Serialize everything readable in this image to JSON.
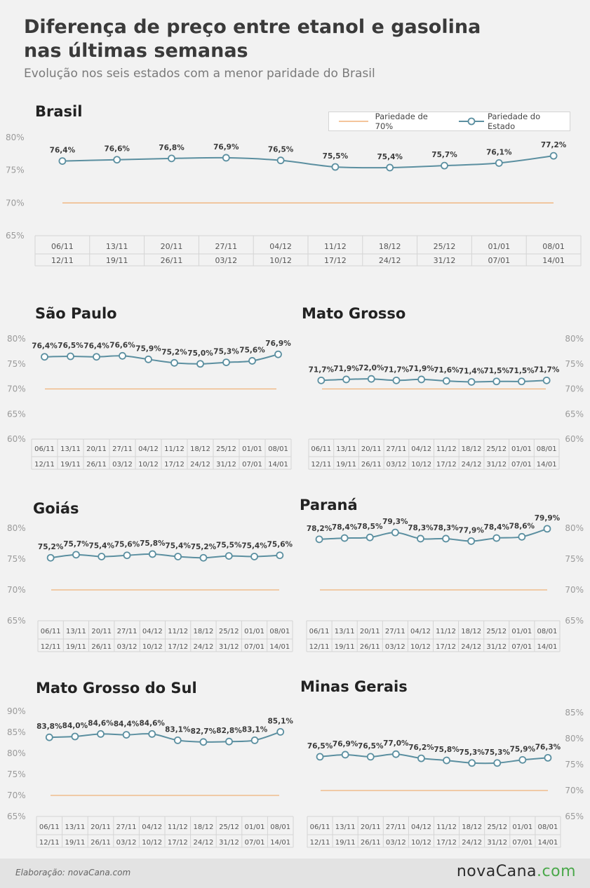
{
  "page": {
    "title_line1": "Diferença de preço entre etanol e gasolina",
    "title_line2": "nas últimas semanas",
    "subtitle": "Evolução nos seis estados com a menor paridade do Brasil",
    "credit": "Elaboração: novaCana.com",
    "logo_part1": "novaCana",
    "logo_part2": ".com"
  },
  "legend": {
    "ref_label": "Pariedade de 70%",
    "series_label": "Pariedade do Estado"
  },
  "colors": {
    "line": "#5b8fa0",
    "reference": "#f0b27a",
    "grid": "#d4d4d4",
    "axis_text": "#9a9a9a"
  },
  "chart_data": [
    {
      "type": "line",
      "title": "Brasil",
      "categories": [
        [
          "06/11",
          "12/11"
        ],
        [
          "13/11",
          "19/11"
        ],
        [
          "20/11",
          "26/11"
        ],
        [
          "27/11",
          "03/12"
        ],
        [
          "04/12",
          "10/12"
        ],
        [
          "11/12",
          "17/12"
        ],
        [
          "18/12",
          "24/12"
        ],
        [
          "25/12",
          "31/12"
        ],
        [
          "01/01",
          "07/01"
        ],
        [
          "08/01",
          "14/01"
        ]
      ],
      "values": [
        76.4,
        76.6,
        76.8,
        76.9,
        76.5,
        75.5,
        75.4,
        75.7,
        76.1,
        77.2
      ],
      "labels": [
        "76,4%",
        "76,6%",
        "76,8%",
        "76,9%",
        "76,5%",
        "75,5%",
        "75,4%",
        "75,7%",
        "76,1%",
        "77,2%"
      ],
      "reference": 70,
      "ylim": [
        65,
        80
      ],
      "yticks": [
        "65%",
        "70%",
        "75%",
        "80%"
      ],
      "yaxis_side": "left",
      "legend": "top-right"
    },
    {
      "type": "line",
      "title": "São Paulo",
      "categories": [
        [
          "06/11",
          "12/11"
        ],
        [
          "13/11",
          "19/11"
        ],
        [
          "20/11",
          "26/11"
        ],
        [
          "27/11",
          "03/12"
        ],
        [
          "04/12",
          "10/12"
        ],
        [
          "11/12",
          "17/12"
        ],
        [
          "18/12",
          "24/12"
        ],
        [
          "25/12",
          "31/12"
        ],
        [
          "01/01",
          "07/01"
        ],
        [
          "08/01",
          "14/01"
        ]
      ],
      "values": [
        76.4,
        76.5,
        76.4,
        76.6,
        75.9,
        75.2,
        75.0,
        75.3,
        75.6,
        76.9
      ],
      "labels": [
        "76,4%",
        "76,5%",
        "76,4%",
        "76,6%",
        "75,9%",
        "75,2%",
        "75,0%",
        "75,3%",
        "75,6%",
        "76,9%"
      ],
      "reference": 70,
      "ylim": [
        60,
        80
      ],
      "yticks": [
        "60%",
        "65%",
        "70%",
        "75%",
        "80%"
      ],
      "yaxis_side": "left"
    },
    {
      "type": "line",
      "title": "Mato Grosso",
      "categories": [
        [
          "06/11",
          "12/11"
        ],
        [
          "13/11",
          "19/11"
        ],
        [
          "20/11",
          "26/11"
        ],
        [
          "27/11",
          "03/12"
        ],
        [
          "04/12",
          "10/12"
        ],
        [
          "11/12",
          "17/12"
        ],
        [
          "18/12",
          "24/12"
        ],
        [
          "25/12",
          "31/12"
        ],
        [
          "01/01",
          "07/01"
        ],
        [
          "08/01",
          "14/01"
        ]
      ],
      "values": [
        71.7,
        71.9,
        72.0,
        71.7,
        71.9,
        71.6,
        71.4,
        71.5,
        71.5,
        71.7
      ],
      "labels": [
        "71,7%",
        "71,9%",
        "72,0%",
        "71,7%",
        "71,9%",
        "71,6%",
        "71,4%",
        "71,5%",
        "71,5%",
        "71,7%"
      ],
      "reference": 70,
      "ylim": [
        60,
        80
      ],
      "yticks": [
        "60%",
        "65%",
        "70%",
        "75%",
        "80%"
      ],
      "yaxis_side": "right"
    },
    {
      "type": "line",
      "title": "Goiás",
      "categories": [
        [
          "06/11",
          "12/11"
        ],
        [
          "13/11",
          "19/11"
        ],
        [
          "20/11",
          "26/11"
        ],
        [
          "27/11",
          "03/12"
        ],
        [
          "04/12",
          "10/12"
        ],
        [
          "11/12",
          "17/12"
        ],
        [
          "18/12",
          "24/12"
        ],
        [
          "25/12",
          "31/12"
        ],
        [
          "01/01",
          "07/01"
        ],
        [
          "08/01",
          "14/01"
        ]
      ],
      "values": [
        75.2,
        75.7,
        75.4,
        75.6,
        75.8,
        75.4,
        75.2,
        75.5,
        75.4,
        75.6
      ],
      "labels": [
        "75,2%",
        "75,7%",
        "75,4%",
        "75,6%",
        "75,8%",
        "75,4%",
        "75,2%",
        "75,5%",
        "75,4%",
        "75,6%"
      ],
      "reference": 70,
      "ylim": [
        65,
        80
      ],
      "yticks": [
        "65%",
        "70%",
        "75%",
        "80%"
      ],
      "yaxis_side": "left"
    },
    {
      "type": "line",
      "title": "Paraná",
      "categories": [
        [
          "06/11",
          "12/11"
        ],
        [
          "13/11",
          "19/11"
        ],
        [
          "20/11",
          "26/11"
        ],
        [
          "27/11",
          "03/12"
        ],
        [
          "04/12",
          "10/12"
        ],
        [
          "11/12",
          "17/12"
        ],
        [
          "18/12",
          "24/12"
        ],
        [
          "25/12",
          "31/12"
        ],
        [
          "01/01",
          "07/01"
        ],
        [
          "08/01",
          "14/01"
        ]
      ],
      "values": [
        78.2,
        78.4,
        78.5,
        79.3,
        78.3,
        78.3,
        77.9,
        78.4,
        78.6,
        79.9
      ],
      "labels": [
        "78,2%",
        "78,4%",
        "78,5%",
        "79,3%",
        "78,3%",
        "78,3%",
        "77,9%",
        "78,4%",
        "78,6%",
        "79,9%"
      ],
      "reference": 70,
      "ylim": [
        65,
        80
      ],
      "yticks": [
        "65%",
        "70%",
        "75%",
        "80%"
      ],
      "yaxis_side": "right"
    },
    {
      "type": "line",
      "title": "Mato Grosso do Sul",
      "categories": [
        [
          "06/11",
          "12/11"
        ],
        [
          "13/11",
          "19/11"
        ],
        [
          "20/11",
          "26/11"
        ],
        [
          "27/11",
          "03/12"
        ],
        [
          "04/12",
          "10/12"
        ],
        [
          "11/12",
          "17/12"
        ],
        [
          "18/12",
          "24/12"
        ],
        [
          "25/12",
          "31/12"
        ],
        [
          "01/01",
          "07/01"
        ],
        [
          "08/01",
          "14/01"
        ]
      ],
      "values": [
        83.8,
        84.0,
        84.6,
        84.4,
        84.6,
        83.1,
        82.7,
        82.8,
        83.1,
        85.1
      ],
      "labels": [
        "83,8%",
        "84,0%",
        "84,6%",
        "84,4%",
        "84,6%",
        "83,1%",
        "82,7%",
        "82,8%",
        "83,1%",
        "85,1%"
      ],
      "reference": 70,
      "ylim": [
        65,
        90
      ],
      "yticks": [
        "65%",
        "70%",
        "75%",
        "80%",
        "85%",
        "90%"
      ],
      "yaxis_side": "left"
    },
    {
      "type": "line",
      "title": "Minas Gerais",
      "categories": [
        [
          "06/11",
          "12/11"
        ],
        [
          "13/11",
          "19/11"
        ],
        [
          "20/11",
          "26/11"
        ],
        [
          "27/11",
          "03/12"
        ],
        [
          "04/12",
          "10/12"
        ],
        [
          "11/12",
          "17/12"
        ],
        [
          "18/12",
          "24/12"
        ],
        [
          "25/12",
          "31/12"
        ],
        [
          "01/01",
          "07/01"
        ],
        [
          "08/01",
          "14/01"
        ]
      ],
      "values": [
        76.5,
        76.9,
        76.5,
        77.0,
        76.2,
        75.8,
        75.3,
        75.3,
        75.9,
        76.3
      ],
      "labels": [
        "76,5%",
        "76,9%",
        "76,5%",
        "77,0%",
        "76,2%",
        "75,8%",
        "75,3%",
        "75,3%",
        "75,9%",
        "76,3%"
      ],
      "reference": 70,
      "ylim": [
        65,
        85
      ],
      "yticks": [
        "65%",
        "70%",
        "75%",
        "80%",
        "85%"
      ],
      "yaxis_side": "right"
    }
  ]
}
